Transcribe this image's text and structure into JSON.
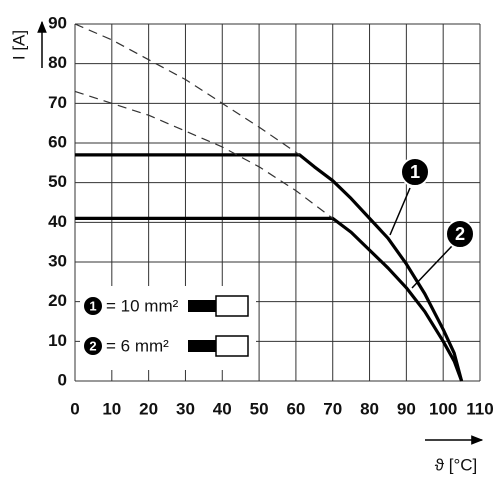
{
  "chart_data": {
    "type": "line",
    "x_label": "ϑ [°C]",
    "y_label": "I [A]",
    "xlim": [
      0,
      110
    ],
    "ylim": [
      0,
      90
    ],
    "xticks": [
      0,
      10,
      20,
      30,
      40,
      50,
      60,
      70,
      80,
      90,
      100,
      110
    ],
    "yticks": [
      0,
      10,
      20,
      30,
      40,
      50,
      60,
      70,
      80,
      90
    ],
    "grid": true,
    "series": [
      {
        "name": "= 10 mm²",
        "label": "1",
        "color": "#000000",
        "style": "solid",
        "x": [
          0,
          61,
          65,
          70,
          75,
          80,
          85,
          90,
          95,
          100,
          103,
          105
        ],
        "values": [
          57,
          57,
          54,
          50.5,
          46,
          41,
          36,
          29.5,
          22,
          13,
          7,
          0
        ]
      },
      {
        "name": "= 6 mm²",
        "label": "2",
        "color": "#000000",
        "style": "solid",
        "x": [
          0,
          70,
          75,
          80,
          85,
          90,
          95,
          100,
          103,
          105
        ],
        "values": [
          41,
          41,
          37.5,
          33,
          28.5,
          23.5,
          17.5,
          10,
          5,
          0
        ]
      },
      {
        "color": "#333333",
        "style": "dashed",
        "x": [
          0,
          10,
          20,
          30,
          40,
          50,
          61
        ],
        "values": [
          90,
          86,
          81,
          76,
          70,
          64,
          57
        ]
      },
      {
        "color": "#333333",
        "style": "dashed",
        "x": [
          0,
          10,
          20,
          30,
          40,
          50,
          60,
          70
        ],
        "values": [
          73,
          70,
          67,
          63,
          59,
          54,
          48,
          41
        ]
      }
    ]
  }
}
